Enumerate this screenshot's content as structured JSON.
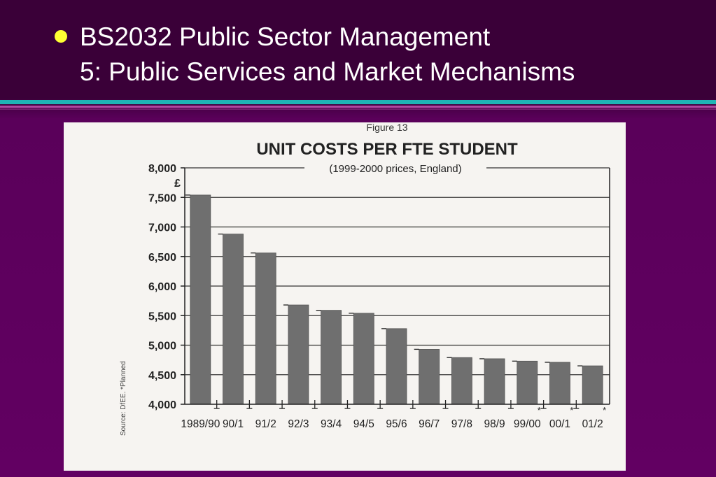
{
  "slide": {
    "title_line1": "BS2032 Public Sector Management",
    "title_line2": "5: Public Services and Market Mechanisms",
    "bullet_color": "#ffff33"
  },
  "chart_data": {
    "type": "bar",
    "figure_label": "Figure 13",
    "title": "UNIT COSTS PER FTE STUDENT",
    "subtitle": "(1999-2000 prices, England)",
    "ylabel": "£",
    "source_note": "Source: DfEE. *Planned",
    "categories": [
      "1989/90",
      "90/1",
      "91/2",
      "92/3",
      "93/4",
      "94/5",
      "95/6",
      "96/7",
      "97/8",
      "98/9",
      "99/00",
      "00/1",
      "01/2"
    ],
    "values": [
      7540,
      6880,
      6560,
      5680,
      5590,
      5540,
      5280,
      4930,
      4790,
      4770,
      4730,
      4710,
      4650
    ],
    "planned": [
      false,
      false,
      false,
      false,
      false,
      false,
      false,
      false,
      false,
      false,
      true,
      true,
      true
    ],
    "planned_marker": "*",
    "ylim": [
      4000,
      8000
    ],
    "yticks": [
      "4,000",
      "4,500",
      "5,000",
      "5,500",
      "6,000",
      "6,500",
      "7,000",
      "7,500",
      "8,000"
    ],
    "grid": true,
    "bar_color": "#6f6f6f"
  }
}
